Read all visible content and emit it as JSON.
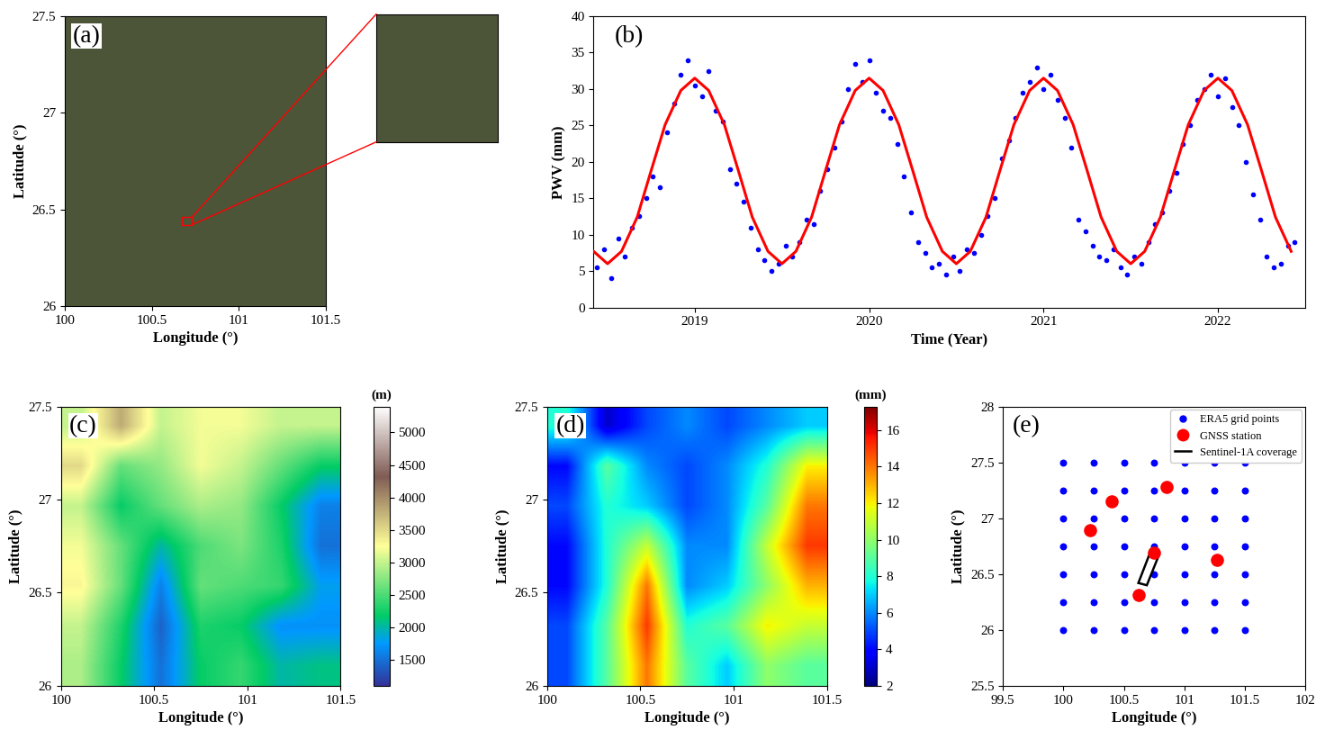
{
  "chart_data": [
    {
      "type": "image",
      "panel_label": "(a)",
      "xlabel": "Longitude (°)",
      "ylabel": "Latitude (°)",
      "xlim": [
        100,
        101.5
      ],
      "ylim": [
        26,
        27.5
      ],
      "xticks": [
        100,
        100.5,
        101,
        101.5
      ],
      "yticks": [
        26,
        26.5,
        27,
        27.5
      ],
      "zoom_box": [
        100.67,
        26.42,
        100.73,
        26.46
      ],
      "color": "#4d5538"
    },
    {
      "type": "scatter",
      "panel_label": "(b)",
      "xlabel": "Time (Year)",
      "ylabel": "PWV (mm)",
      "xlim": [
        2018.42,
        2022.5
      ],
      "ylim": [
        0,
        40
      ],
      "xticks": [
        2019,
        2020,
        2021,
        2022
      ],
      "yticks": [
        0,
        5,
        10,
        15,
        20,
        25,
        30,
        35,
        40
      ],
      "series": [
        {
          "type": "scatter",
          "color": "#0000ff",
          "marker": "o",
          "x": [
            2018.44,
            2018.48,
            2018.52,
            2018.56,
            2018.6,
            2018.64,
            2018.68,
            2018.72,
            2018.76,
            2018.8,
            2018.84,
            2018.88,
            2018.92,
            2018.96,
            2019.0,
            2019.04,
            2019.08,
            2019.12,
            2019.16,
            2019.2,
            2019.24,
            2019.28,
            2019.32,
            2019.36,
            2019.4,
            2019.44,
            2019.48,
            2019.52,
            2019.56,
            2019.6,
            2019.64,
            2019.68,
            2019.72,
            2019.76,
            2019.8,
            2019.84,
            2019.88,
            2019.92,
            2019.96,
            2020.0,
            2020.04,
            2020.08,
            2020.12,
            2020.16,
            2020.2,
            2020.24,
            2020.28,
            2020.32,
            2020.36,
            2020.4,
            2020.44,
            2020.48,
            2020.52,
            2020.56,
            2020.6,
            2020.64,
            2020.68,
            2020.72,
            2020.76,
            2020.8,
            2020.84,
            2020.88,
            2020.92,
            2020.96,
            2021.0,
            2021.04,
            2021.08,
            2021.12,
            2021.16,
            2021.2,
            2021.24,
            2021.28,
            2021.32,
            2021.36,
            2021.4,
            2021.44,
            2021.48,
            2021.52,
            2021.56,
            2021.6,
            2021.64,
            2021.68,
            2021.72,
            2021.76,
            2021.8,
            2021.84,
            2021.88,
            2021.92,
            2021.96,
            2022.0,
            2022.04,
            2022.08,
            2022.12,
            2022.16,
            2022.2,
            2022.24,
            2022.28,
            2022.32,
            2022.36,
            2022.4,
            2022.44
          ],
          "values": [
            5.5,
            8.0,
            4.0,
            9.5,
            7.0,
            11.0,
            12.5,
            15.0,
            18.0,
            16.5,
            24.0,
            28.0,
            32.0,
            34.0,
            30.5,
            29.0,
            32.5,
            27.0,
            25.5,
            19.0,
            17.0,
            14.5,
            11.0,
            8.0,
            6.5,
            5.0,
            6.0,
            8.5,
            7.0,
            9.0,
            12.0,
            11.5,
            16.0,
            19.0,
            22.0,
            25.5,
            30.0,
            33.5,
            31.0,
            34.0,
            29.5,
            27.0,
            26.0,
            22.5,
            18.0,
            13.0,
            9.0,
            7.5,
            5.5,
            6.0,
            4.5,
            7.0,
            5.0,
            8.0,
            7.5,
            10.0,
            12.5,
            15.0,
            20.5,
            23.0,
            26.0,
            29.5,
            31.0,
            33.0,
            30.0,
            32.0,
            28.5,
            26.0,
            22.0,
            12.0,
            10.5,
            8.5,
            7.0,
            6.5,
            8.0,
            5.5,
            4.5,
            7.0,
            6.0,
            9.0,
            11.5,
            13.0,
            16.0,
            18.5,
            22.5,
            25.0,
            28.5,
            30.0,
            32.0,
            29.0,
            31.5,
            27.5,
            25.0,
            20.0,
            15.5,
            12.0,
            7.0,
            5.5,
            6.0,
            8.5,
            9.0
          ]
        },
        {
          "type": "line",
          "color": "#ff0000",
          "line_style": "solid",
          "x": [
            2018.42,
            2018.5,
            2018.58,
            2018.67,
            2018.75,
            2018.83,
            2018.92,
            2019.0,
            2019.08,
            2019.17,
            2019.25,
            2019.33,
            2019.42,
            2019.5,
            2019.58,
            2019.67,
            2019.75,
            2019.83,
            2019.92,
            2020.0,
            2020.08,
            2020.17,
            2020.25,
            2020.33,
            2020.42,
            2020.5,
            2020.58,
            2020.67,
            2020.75,
            2020.83,
            2020.92,
            2021.0,
            2021.08,
            2021.17,
            2021.25,
            2021.33,
            2021.42,
            2021.5,
            2021.58,
            2021.67,
            2021.75,
            2021.83,
            2021.92,
            2022.0,
            2022.08,
            2022.17,
            2022.25,
            2022.33,
            2022.42
          ],
          "values": [
            7.7,
            6.0,
            7.7,
            12.4,
            18.8,
            25.1,
            29.8,
            31.5,
            29.8,
            25.1,
            18.8,
            12.4,
            7.7,
            6.0,
            7.7,
            12.4,
            18.8,
            25.1,
            29.8,
            31.5,
            29.8,
            25.1,
            18.8,
            12.4,
            7.7,
            6.0,
            7.7,
            12.4,
            18.8,
            25.1,
            29.8,
            31.5,
            29.8,
            25.1,
            18.8,
            12.4,
            7.7,
            6.0,
            7.7,
            12.4,
            18.8,
            25.1,
            29.8,
            31.5,
            29.8,
            25.1,
            18.8,
            12.4,
            7.7
          ]
        }
      ]
    },
    {
      "type": "heatmap",
      "panel_label": "(c)",
      "xlabel": "Longitude (°)",
      "ylabel": "Latitude (°)",
      "xlim": [
        100,
        101.5
      ],
      "ylim": [
        26,
        27.5
      ],
      "xticks": [
        100,
        100.5,
        101,
        101.5
      ],
      "yticks": [
        26,
        26.5,
        27,
        27.5
      ],
      "colorbar_title": "(m)",
      "colorbar_range": [
        1100,
        5400
      ],
      "colorbar_ticks": [
        1500,
        2000,
        2500,
        3000,
        3500,
        4000,
        4500,
        5000
      ],
      "cells": [
        [
          3000,
          3800,
          3000,
          3200,
          3200,
          3000,
          3000
        ],
        [
          3500,
          2600,
          2800,
          3200,
          3000,
          2600,
          2200
        ],
        [
          3000,
          2200,
          2600,
          2900,
          2800,
          2200,
          1600
        ],
        [
          3200,
          2600,
          2000,
          2500,
          2700,
          2300,
          1500
        ],
        [
          3300,
          2600,
          1600,
          2600,
          2500,
          2400,
          1800
        ],
        [
          3000,
          2300,
          1400,
          2300,
          2200,
          1700,
          1700
        ],
        [
          2900,
          2200,
          1500,
          2200,
          2400,
          2000,
          2100
        ]
      ]
    },
    {
      "type": "heatmap",
      "panel_label": "(d)",
      "xlabel": "Longitude (°)",
      "ylabel": "Latitude (°)",
      "xlim": [
        100,
        101.5
      ],
      "ylim": [
        26,
        27.5
      ],
      "xticks": [
        100,
        100.5,
        101,
        101.5
      ],
      "yticks": [
        26,
        26.5,
        27,
        27.5
      ],
      "colorbar_title": "(mm)",
      "colorbar_range": [
        2,
        17.3
      ],
      "colorbar_ticks": [
        2,
        4,
        6,
        8,
        10,
        12,
        14,
        16
      ],
      "cells": [
        [
          8,
          3,
          5,
          6,
          5,
          6,
          7
        ],
        [
          4,
          9,
          6,
          5,
          6,
          8,
          12
        ],
        [
          5,
          8,
          7,
          5,
          6,
          9,
          14
        ],
        [
          4,
          8,
          11,
          6,
          6,
          11,
          15
        ],
        [
          4,
          8,
          14,
          6,
          7,
          10,
          13
        ],
        [
          5,
          9,
          15,
          8,
          9,
          12,
          11
        ],
        [
          5,
          9,
          14,
          9,
          7,
          10,
          9
        ]
      ]
    },
    {
      "type": "scatter",
      "panel_label": "(e)",
      "xlabel": "Longitude (°)",
      "ylabel": "Latitude (°)",
      "xlim": [
        99.5,
        102
      ],
      "ylim": [
        25.5,
        28
      ],
      "xticks": [
        99.5,
        100,
        100.5,
        101,
        101.5,
        102
      ],
      "yticks": [
        25.5,
        26,
        26.5,
        27,
        27.5,
        28
      ],
      "legend": "upper right",
      "series": [
        {
          "name": "ERA5 grid points",
          "type": "grid",
          "color": "#0000ff",
          "marker": "o",
          "lons": [
            100,
            100.25,
            100.5,
            100.75,
            101,
            101.25,
            101.5
          ],
          "lats": [
            26,
            26.25,
            26.5,
            26.75,
            27,
            27.25,
            27.5
          ]
        },
        {
          "name": "GNSS station",
          "type": "scatter",
          "color": "#ff0000",
          "marker": "o",
          "x": [
            100.22,
            100.4,
            100.85,
            100.62,
            100.75,
            101.27
          ],
          "values": [
            26.89,
            27.15,
            27.28,
            26.31,
            26.69,
            26.63
          ]
        },
        {
          "name": "Sentinel-1A coverage",
          "type": "polygon",
          "color": "#000000",
          "line_style": "solid",
          "x": [
            100.62,
            100.72,
            100.79,
            100.69
          ],
          "values": [
            26.42,
            26.7,
            26.67,
            26.4
          ]
        }
      ]
    }
  ]
}
